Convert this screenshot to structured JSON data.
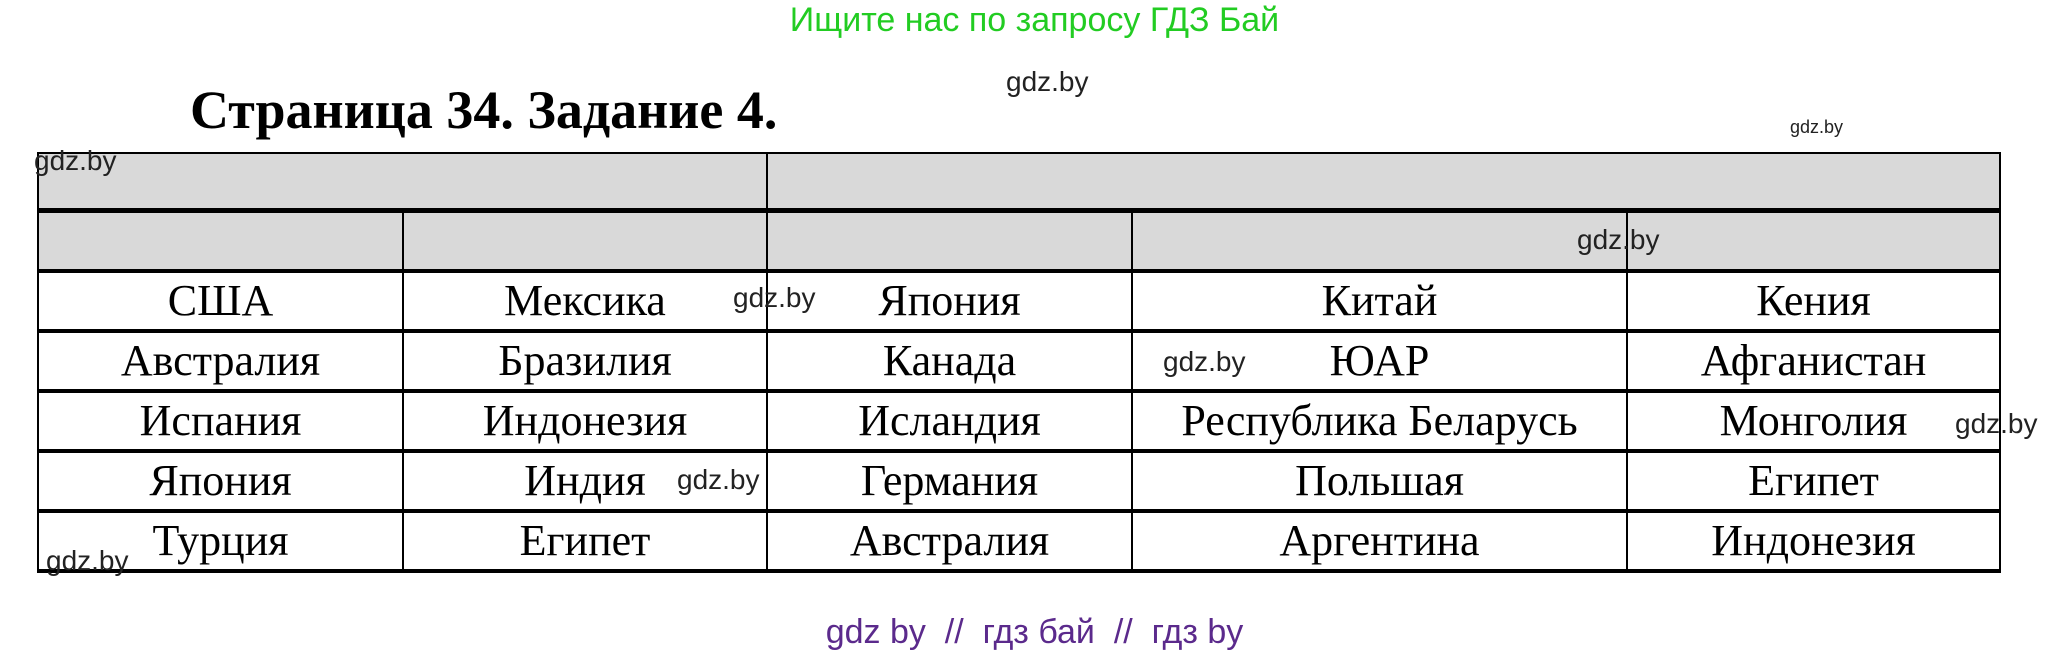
{
  "banner": "Ищите нас по запросу ГДЗ Бай",
  "title": "Страница 34. Задание 4.",
  "table": {
    "rows": [
      [
        "США",
        "Мексика",
        "Япония",
        "Китай",
        "Кения"
      ],
      [
        "Австралия",
        "Бразилия",
        "Канада",
        "ЮАР",
        "Афганистан"
      ],
      [
        "Испания",
        "Индонезия",
        "Исландия",
        "Республика Беларусь",
        "Монголия"
      ],
      [
        "Япония",
        "Индия",
        "Германия",
        "Польшая",
        "Египет"
      ],
      [
        "Турция",
        "Египет",
        "Австралия",
        "Аргентина",
        "Индонезия"
      ]
    ]
  },
  "watermark": "gdz.by",
  "footer": "gdz by  //  гдз бай  //  гдз by",
  "colors": {
    "banner": "#22cc22",
    "footer": "#5b2a8c",
    "header_fill": "#d9d9d9"
  }
}
